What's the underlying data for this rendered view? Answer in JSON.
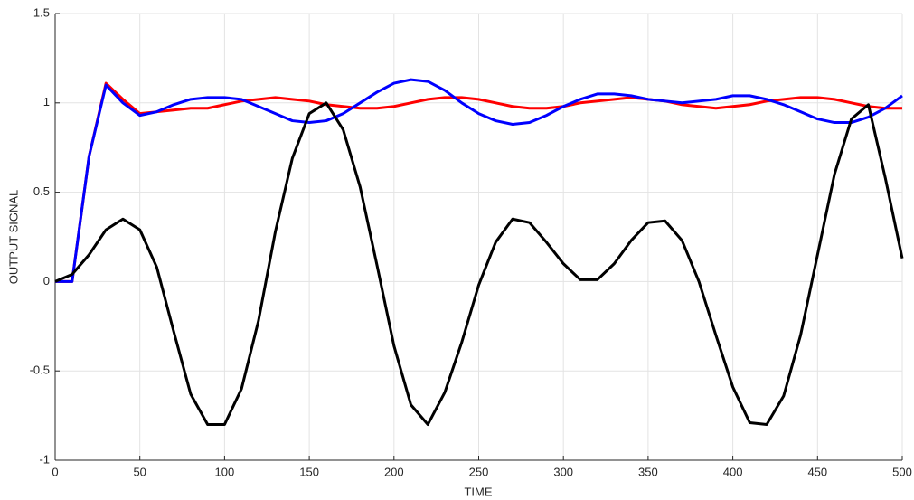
{
  "chart_data": {
    "type": "line",
    "xlabel": "TIME",
    "ylabel": "OUTPUT SIGNAL",
    "x": [
      0,
      10,
      20,
      30,
      40,
      50,
      60,
      70,
      80,
      90,
      100,
      110,
      120,
      130,
      140,
      150,
      160,
      170,
      180,
      190,
      200,
      210,
      220,
      230,
      240,
      250,
      260,
      270,
      280,
      290,
      300,
      310,
      320,
      330,
      340,
      350,
      360,
      370,
      380,
      390,
      400,
      410,
      420,
      430,
      440,
      450,
      460,
      470,
      480,
      490,
      500
    ],
    "series": [
      {
        "color": "#ff0000",
        "values": [
          0,
          0,
          0.7,
          1.11,
          1.02,
          0.94,
          0.95,
          0.96,
          0.97,
          0.97,
          0.99,
          1.01,
          1.02,
          1.03,
          1.02,
          1.01,
          0.99,
          0.98,
          0.97,
          0.97,
          0.98,
          1.0,
          1.02,
          1.03,
          1.03,
          1.02,
          1.0,
          0.98,
          0.97,
          0.97,
          0.98,
          1.0,
          1.01,
          1.02,
          1.03,
          1.02,
          1.01,
          0.99,
          0.98,
          0.97,
          0.98,
          0.99,
          1.01,
          1.02,
          1.03,
          1.03,
          1.02,
          1.0,
          0.98,
          0.97,
          0.97
        ]
      },
      {
        "color": "#0000ff",
        "values": [
          0,
          0,
          0.7,
          1.1,
          1.0,
          0.93,
          0.95,
          0.99,
          1.02,
          1.03,
          1.03,
          1.02,
          0.98,
          0.94,
          0.9,
          0.89,
          0.9,
          0.94,
          1.0,
          1.06,
          1.11,
          1.13,
          1.12,
          1.07,
          1.0,
          0.94,
          0.9,
          0.88,
          0.89,
          0.93,
          0.98,
          1.02,
          1.05,
          1.05,
          1.04,
          1.02,
          1.01,
          1.0,
          1.01,
          1.02,
          1.04,
          1.04,
          1.02,
          0.99,
          0.95,
          0.91,
          0.89,
          0.89,
          0.92,
          0.97,
          1.04
        ]
      },
      {
        "color": "#000000",
        "values": [
          0,
          0.04,
          0.15,
          0.29,
          0.35,
          0.29,
          0.08,
          -0.28,
          -0.63,
          -0.8,
          -0.8,
          -0.6,
          -0.22,
          0.28,
          0.69,
          0.94,
          1.0,
          0.85,
          0.53,
          0.09,
          -0.36,
          -0.69,
          -0.8,
          -0.62,
          -0.34,
          -0.02,
          0.22,
          0.35,
          0.33,
          0.22,
          0.1,
          0.01,
          0.01,
          0.1,
          0.23,
          0.33,
          0.34,
          0.23,
          0.0,
          -0.3,
          -0.59,
          -0.79,
          -0.8,
          -0.64,
          -0.3,
          0.15,
          0.6,
          0.91,
          0.99,
          0.58,
          0.13
        ]
      }
    ],
    "xlim": [
      0,
      500
    ],
    "ylim": [
      -1,
      1.5
    ],
    "xticks": [
      0,
      50,
      100,
      150,
      200,
      250,
      300,
      350,
      400,
      450,
      500
    ],
    "yticks": [
      -1,
      -0.5,
      0,
      0.5,
      1,
      1.5
    ],
    "grid": true
  }
}
